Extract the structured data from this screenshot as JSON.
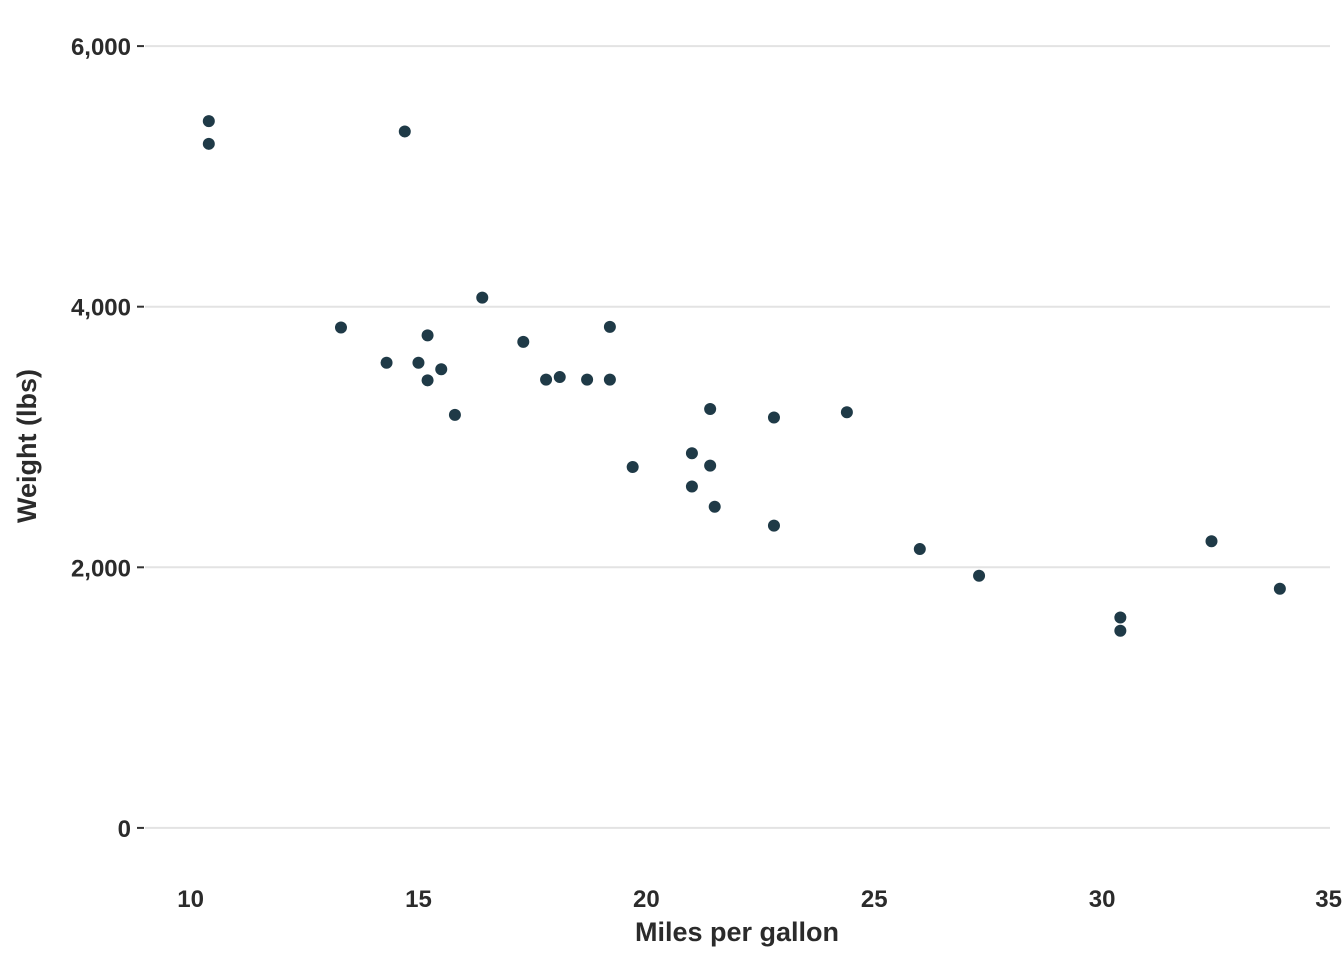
{
  "chart_data": {
    "type": "scatter",
    "xlabel": "Miles per gallon",
    "ylabel": "Weight (lbs)",
    "xlim": [
      9,
      35
    ],
    "ylim": [
      -300,
      6300
    ],
    "x_ticks": [
      {
        "value": 10,
        "label": "10"
      },
      {
        "value": 15,
        "label": "15"
      },
      {
        "value": 20,
        "label": "20"
      },
      {
        "value": 25,
        "label": "25"
      },
      {
        "value": 30,
        "label": "30"
      },
      {
        "value": 35,
        "label": "35"
      }
    ],
    "y_ticks": [
      {
        "value": 0,
        "label": "0"
      },
      {
        "value": 2000,
        "label": "2,000"
      },
      {
        "value": 4000,
        "label": "4,000"
      },
      {
        "value": 6000,
        "label": "6,000"
      }
    ],
    "grid": "horizontal",
    "point_color": "#1f3a47",
    "points": [
      {
        "x": 21.0,
        "y": 2620
      },
      {
        "x": 21.0,
        "y": 2875
      },
      {
        "x": 22.8,
        "y": 2320
      },
      {
        "x": 21.4,
        "y": 3215
      },
      {
        "x": 18.7,
        "y": 3440
      },
      {
        "x": 18.1,
        "y": 3460
      },
      {
        "x": 14.3,
        "y": 3570
      },
      {
        "x": 24.4,
        "y": 3190
      },
      {
        "x": 22.8,
        "y": 3150
      },
      {
        "x": 19.2,
        "y": 3440
      },
      {
        "x": 17.8,
        "y": 3440
      },
      {
        "x": 16.4,
        "y": 4070
      },
      {
        "x": 17.3,
        "y": 3730
      },
      {
        "x": 15.2,
        "y": 3780
      },
      {
        "x": 10.4,
        "y": 5250
      },
      {
        "x": 10.4,
        "y": 5424
      },
      {
        "x": 14.7,
        "y": 5345
      },
      {
        "x": 32.4,
        "y": 2200
      },
      {
        "x": 30.4,
        "y": 1615
      },
      {
        "x": 33.9,
        "y": 1835
      },
      {
        "x": 21.5,
        "y": 2465
      },
      {
        "x": 15.5,
        "y": 3520
      },
      {
        "x": 15.2,
        "y": 3435
      },
      {
        "x": 13.3,
        "y": 3840
      },
      {
        "x": 19.2,
        "y": 3845
      },
      {
        "x": 27.3,
        "y": 1935
      },
      {
        "x": 26.0,
        "y": 2140
      },
      {
        "x": 30.4,
        "y": 1513
      },
      {
        "x": 15.8,
        "y": 3170
      },
      {
        "x": 19.7,
        "y": 2770
      },
      {
        "x": 15.0,
        "y": 3570
      },
      {
        "x": 21.4,
        "y": 2780
      }
    ]
  }
}
